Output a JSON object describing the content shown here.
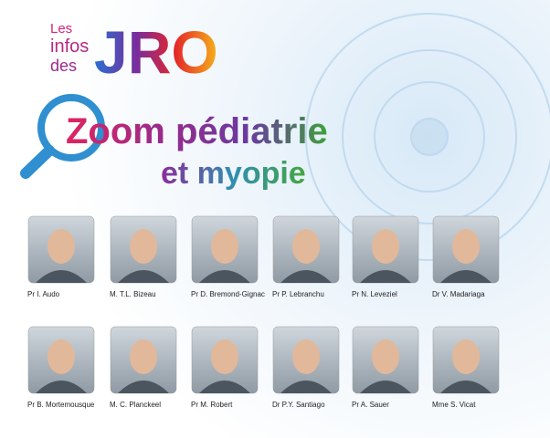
{
  "header": {
    "logo_small": [
      "Les",
      "infos",
      "des"
    ],
    "logo_big": "JRO"
  },
  "title": {
    "line1": "Zoom pédiatrie",
    "line2": "et myopie"
  },
  "people": [
    "Pr I. Audo",
    "M. T.L. Bizeau",
    "Pr D. Bremond-Gignac",
    "Pr P. Lebranchu",
    "Pr N. Leveziel",
    "Dr V. Madariaga",
    "Pr B. Mortemousque",
    "M. C. Planckeel",
    "Pr M. Robert",
    "Dr P.Y. Santiago",
    "Pr A. Sauer",
    "Mme S. Vicat"
  ]
}
